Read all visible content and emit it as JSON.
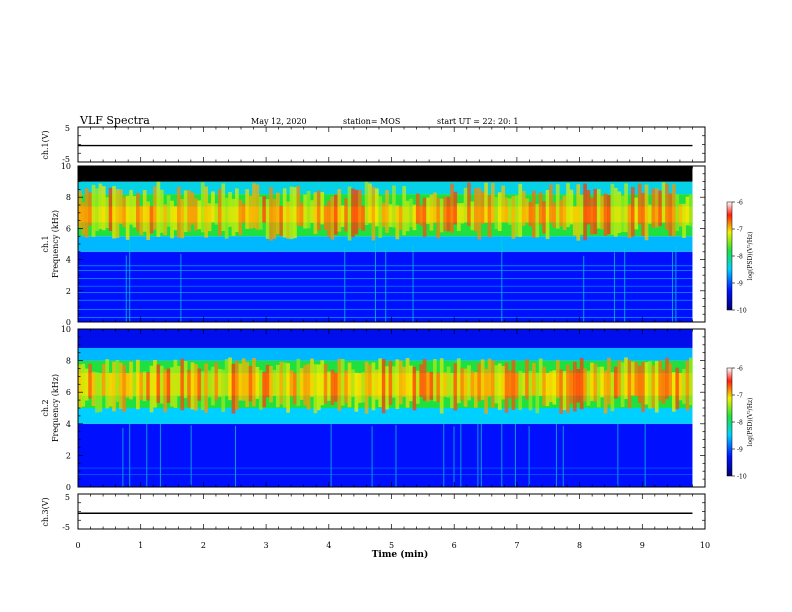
{
  "header": {
    "title": "VLF Spectra",
    "date": "May 12, 2020",
    "station": "station= MOS",
    "start": "start  UT =   22: 20: 1"
  },
  "x_axis": {
    "label": "Time  (min)",
    "ticks": [
      "0",
      "1",
      "2",
      "3",
      "4",
      "5",
      "6",
      "7",
      "8",
      "9",
      "10"
    ]
  },
  "panels": {
    "ch1_voltage": {
      "ylabel": "ch.1(V)",
      "ticks": [
        "5",
        "-5"
      ]
    },
    "ch1_spectrogram": {
      "ylabel_channel": "ch.1",
      "ylabel_quantity": "Frequency (kHz)",
      "ticks": [
        "0",
        "2",
        "4",
        "6",
        "8",
        "10"
      ]
    },
    "ch2_spectrogram": {
      "ylabel_channel": "ch.2",
      "ylabel_quantity": "Frequency (kHz)",
      "ticks": [
        "0",
        "2",
        "4",
        "6",
        "8",
        "10"
      ]
    },
    "ch3_voltage": {
      "ylabel": "ch.3(V)",
      "ticks": [
        "5",
        "-5"
      ]
    }
  },
  "colorbars": [
    {
      "label": "log(PSD)(V²/Hz)",
      "ticks": [
        "-6",
        "-7",
        "-8",
        "-9",
        "-10"
      ]
    },
    {
      "label": "log(PSD)(V²/Hz)",
      "ticks": [
        "-6",
        "-7",
        "-8",
        "-9",
        "-10"
      ]
    }
  ],
  "colors": {
    "dark_blue": "#00007a",
    "blue": "#1030e0",
    "cyan": "#00d8d8",
    "green": "#40e040",
    "yellow": "#f0f000",
    "red": "#e01010",
    "black": "#000000"
  },
  "chart_data": [
    {
      "type": "line",
      "name": "ch.1 voltage",
      "x": [
        0,
        9.8
      ],
      "y": [
        -0.3,
        -0.3
      ],
      "xlim": [
        0,
        10
      ],
      "ylim": [
        -5,
        5
      ],
      "ylabel": "ch.1(V)"
    },
    {
      "type": "heatmap",
      "name": "ch.1 spectrogram",
      "xlim": [
        0,
        9.8
      ],
      "ylim_khz": [
        0,
        10
      ],
      "clim_log_psd": [
        -10,
        -6
      ],
      "bands": [
        {
          "from_khz": 0,
          "to_khz": 4.5,
          "log_psd": -9.3
        },
        {
          "from_khz": 4.5,
          "to_khz": 5.5,
          "log_psd": -8.6
        },
        {
          "from_khz": 5.5,
          "to_khz": 6.4,
          "log_psd": -7.8
        },
        {
          "from_khz": 6.4,
          "to_khz": 7.4,
          "log_psd": -7.0
        },
        {
          "from_khz": 7.4,
          "to_khz": 8.2,
          "log_psd": -7.8
        },
        {
          "from_khz": 8.2,
          "to_khz": 9.0,
          "log_psd": -8.4
        },
        {
          "from_khz": 9.0,
          "to_khz": 10,
          "log_psd": -10.5
        }
      ]
    },
    {
      "type": "heatmap",
      "name": "ch.2 spectrogram",
      "xlim": [
        0,
        9.8
      ],
      "ylim_khz": [
        0,
        10
      ],
      "clim_log_psd": [
        -10,
        -6
      ],
      "bands": [
        {
          "from_khz": 0,
          "to_khz": 4.0,
          "log_psd": -9.3
        },
        {
          "from_khz": 4.0,
          "to_khz": 5.0,
          "log_psd": -8.5
        },
        {
          "from_khz": 5.0,
          "to_khz": 5.8,
          "log_psd": -7.8
        },
        {
          "from_khz": 5.8,
          "to_khz": 7.2,
          "log_psd": -7.0
        },
        {
          "from_khz": 7.2,
          "to_khz": 8.0,
          "log_psd": -7.8
        },
        {
          "from_khz": 8.0,
          "to_khz": 8.8,
          "log_psd": -8.6
        },
        {
          "from_khz": 8.8,
          "to_khz": 10,
          "log_psd": -9.4
        }
      ]
    },
    {
      "type": "line",
      "name": "ch.3 voltage",
      "x": [
        0,
        9.8
      ],
      "y": [
        -0.5,
        -0.5
      ],
      "xlim": [
        0,
        10
      ],
      "ylim": [
        -5,
        5
      ],
      "ylabel": "ch.3(V)"
    }
  ]
}
